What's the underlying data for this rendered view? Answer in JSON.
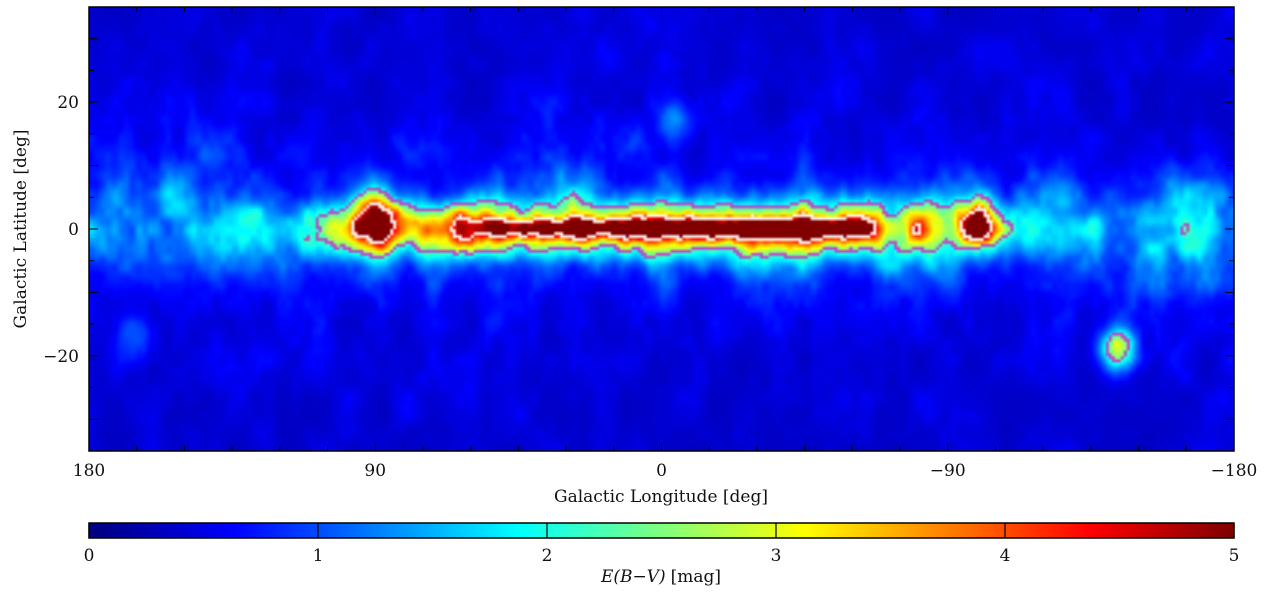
{
  "chart_data": [
    {
      "type": "heatmap",
      "title": "",
      "xlabel": "Galactic Longitude [deg]",
      "ylabel": "Galactic Latitude [deg]",
      "xlim": [
        180,
        -180
      ],
      "ylim": [
        -35,
        35
      ],
      "x_ticks": [
        180,
        90,
        0,
        -90,
        -180
      ],
      "x_tick_labels": [
        "180",
        "90",
        "0",
        "−90",
        "−180"
      ],
      "y_ticks": [
        20,
        0,
        -20
      ],
      "y_tick_labels": [
        "20",
        "0",
        "−20"
      ],
      "colormap": "jet",
      "value_range": [
        0,
        5
      ],
      "contour_colors": [
        "#c13fc9",
        "#ffffff"
      ],
      "features": [
        {
          "x_range": [
            -110,
            110
          ],
          "b_center": 0,
          "b_halfwidth": 5,
          "peak": 3.5
        },
        {
          "x_range": [
            -65,
            55
          ],
          "b_center": 0,
          "b_halfwidth": 1,
          "peak": 5
        },
        {
          "x": 90,
          "b": 2,
          "peak": 3.2
        },
        {
          "x": -100,
          "b": 1,
          "peak": 3.0
        },
        {
          "x": 165,
          "b": -17,
          "peak": 1.5
        },
        {
          "x": -143,
          "b": -19,
          "peak": 3.2
        },
        {
          "x": -5,
          "b": 17,
          "peak": 1.6
        }
      ]
    },
    {
      "type": "colorbar",
      "label_text": "E(B−V)",
      "label_unit": "[mag]",
      "ticks": [
        0,
        1,
        2,
        3,
        4,
        5
      ],
      "tick_labels": [
        "0",
        "1",
        "2",
        "3",
        "4",
        "5"
      ],
      "colormap": "jet",
      "range": [
        0,
        5
      ]
    }
  ]
}
